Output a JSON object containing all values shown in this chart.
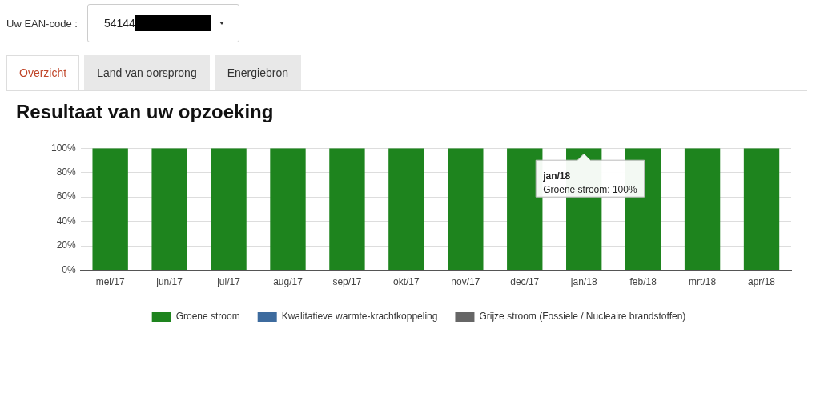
{
  "chart_data": {
    "type": "bar",
    "title": "Resultaat van uw opzoeking",
    "categories": [
      "mei/17",
      "jun/17",
      "jul/17",
      "aug/17",
      "sep/17",
      "okt/17",
      "nov/17",
      "dec/17",
      "jan/18",
      "feb/18",
      "mrt/18",
      "apr/18"
    ],
    "series": [
      {
        "name": "Groene stroom",
        "color": "#1e841e",
        "values": [
          100,
          100,
          100,
          100,
          100,
          100,
          100,
          100,
          100,
          100,
          100,
          100
        ]
      },
      {
        "name": "Kwalitatieve warmte-krachtkoppeling",
        "color": "#3d6b9e",
        "values": [
          0,
          0,
          0,
          0,
          0,
          0,
          0,
          0,
          0,
          0,
          0,
          0
        ]
      },
      {
        "name": "Grijze stroom (Fossiele / Nucleaire brandstoffen)",
        "color": "#666666",
        "values": [
          0,
          0,
          0,
          0,
          0,
          0,
          0,
          0,
          0,
          0,
          0,
          0
        ]
      }
    ],
    "stacked": true,
    "ylim": [
      0,
      100
    ],
    "yticks": [
      {
        "value": 0,
        "label": "0%"
      },
      {
        "value": 20,
        "label": "20%"
      },
      {
        "value": 40,
        "label": "40%"
      },
      {
        "value": 60,
        "label": "60%"
      },
      {
        "value": 80,
        "label": "80%"
      },
      {
        "value": 100,
        "label": "100%"
      }
    ],
    "grid": "y",
    "legend": "bottom",
    "annotations": [
      "Uw EAN-code :",
      "54144",
      "Overzicht",
      "Land van oorsprong",
      "Energiebron",
      {
        "text": "jan/18\nGroene stroom: 100%",
        "x": "jan/18",
        "y": 100
      }
    ]
  }
}
